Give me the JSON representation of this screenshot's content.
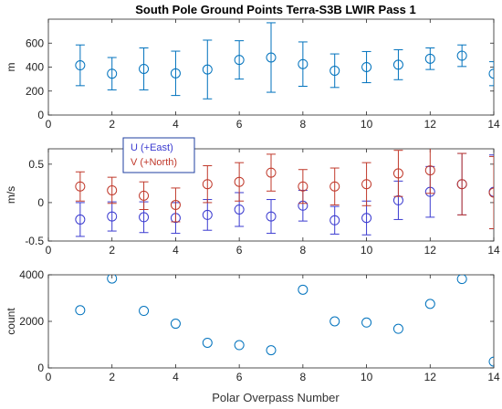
{
  "title": "South Pole Ground Points Terra-S3B LWIR Pass 1",
  "colors": {
    "blue": "#0072bd",
    "u": "#3b3bd0",
    "v": "#c0392b",
    "axis": "#262626",
    "legend_border": "#1f3fa0"
  },
  "chart_data": [
    {
      "type": "scatter",
      "panel": "top",
      "ylabel": "m",
      "xlim": [
        0,
        14
      ],
      "ylim": [
        0,
        800
      ],
      "x_ticks": [
        0,
        2,
        4,
        6,
        8,
        10,
        12,
        14
      ],
      "y_ticks": [
        0,
        200,
        400,
        600
      ],
      "series": [
        {
          "x": [
            1,
            2,
            3,
            4,
            5,
            6,
            7,
            8,
            9,
            10,
            11,
            12,
            13,
            14
          ],
          "values": [
            415,
            345,
            385,
            348,
            380,
            460,
            480,
            425,
            370,
            400,
            420,
            470,
            495,
            345
          ],
          "err": [
            170,
            135,
            175,
            185,
            245,
            160,
            290,
            185,
            140,
            130,
            125,
            90,
            90,
            100
          ]
        }
      ]
    },
    {
      "type": "scatter",
      "panel": "middle",
      "ylabel": "m/s",
      "xlim": [
        0,
        14
      ],
      "ylim": [
        -0.5,
        0.7
      ],
      "x_ticks": [
        0,
        2,
        4,
        6,
        8,
        10,
        12,
        14
      ],
      "y_ticks": [
        -0.5,
        0,
        0.5
      ],
      "legend_position": "upper-left",
      "series": [
        {
          "name": "U (+East)",
          "x": [
            1,
            2,
            3,
            4,
            5,
            6,
            7,
            8,
            9,
            10,
            11,
            12,
            13,
            14
          ],
          "values": [
            -0.22,
            -0.18,
            -0.19,
            -0.2,
            -0.16,
            -0.09,
            -0.18,
            -0.04,
            -0.23,
            -0.2,
            0.03,
            0.14,
            0.24,
            0.14
          ],
          "err": [
            0.22,
            0.19,
            0.2,
            0.2,
            0.2,
            0.22,
            0.22,
            0.2,
            0.18,
            0.22,
            0.25,
            0.33,
            0.4,
            0.48
          ]
        },
        {
          "name": "V (+North)",
          "x": [
            1,
            2,
            3,
            4,
            5,
            6,
            7,
            8,
            9,
            10,
            11,
            12,
            13,
            14
          ],
          "values": [
            0.21,
            0.16,
            0.09,
            -0.03,
            0.24,
            0.27,
            0.39,
            0.21,
            0.21,
            0.24,
            0.38,
            0.42,
            0.24,
            0.13
          ],
          "err": [
            0.19,
            0.17,
            0.18,
            0.22,
            0.24,
            0.25,
            0.24,
            0.22,
            0.24,
            0.28,
            0.3,
            0.3,
            0.4,
            0.47
          ]
        }
      ]
    },
    {
      "type": "scatter",
      "panel": "bottom",
      "ylabel": "count",
      "xlabel": "Polar Overpass Number",
      "xlim": [
        0,
        14
      ],
      "ylim": [
        0,
        4000
      ],
      "x_ticks": [
        0,
        2,
        4,
        6,
        8,
        10,
        12,
        14
      ],
      "y_ticks": [
        0,
        2000,
        4000
      ],
      "series": [
        {
          "x": [
            1,
            2,
            3,
            4,
            5,
            6,
            7,
            8,
            9,
            10,
            11,
            12,
            13,
            14
          ],
          "values": [
            2480,
            3840,
            2450,
            1900,
            1080,
            980,
            760,
            3360,
            2000,
            1950,
            1680,
            2750,
            3820,
            270
          ]
        }
      ]
    }
  ]
}
